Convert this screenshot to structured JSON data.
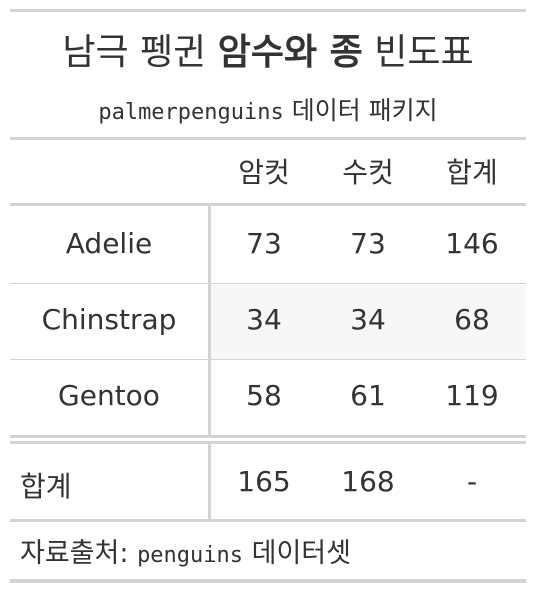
{
  "title": {
    "part1": "남극 펭귄",
    "part2_bold": "암수와 종",
    "part3": "빈도표"
  },
  "subtitle": {
    "code": "palmerpenguins",
    "text": "데이터 패키지"
  },
  "columns": [
    "암컷",
    "수컷",
    "합계"
  ],
  "rows": [
    {
      "label": "Adelie",
      "female": "73",
      "male": "73",
      "total": "146"
    },
    {
      "label": "Chinstrap",
      "female": "34",
      "male": "34",
      "total": "68"
    },
    {
      "label": "Gentoo",
      "female": "58",
      "male": "61",
      "total": "119"
    }
  ],
  "summary": {
    "label": "합계",
    "female": "165",
    "male": "168",
    "total": "-"
  },
  "source": {
    "prefix": "자료출처:",
    "code": "penguins",
    "suffix": "데이터셋"
  },
  "colors": {
    "rule": "#d3d3d3",
    "text": "#333333",
    "stripe": "#f7f7f7"
  }
}
